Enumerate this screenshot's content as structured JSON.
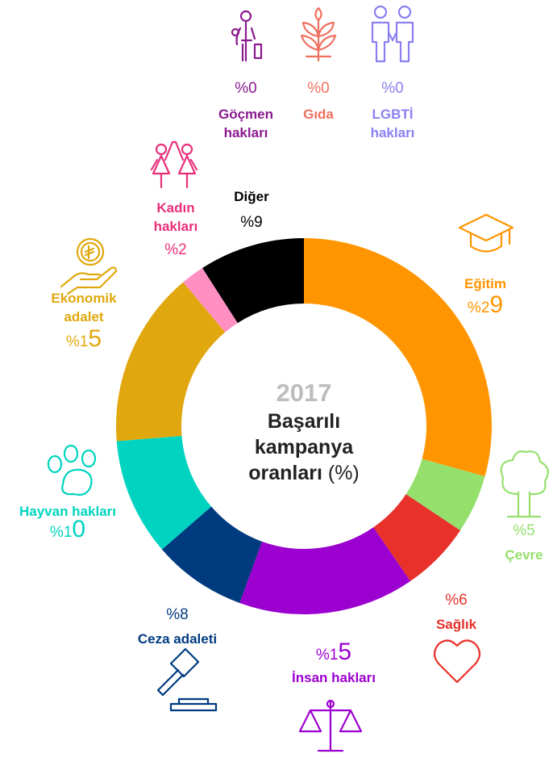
{
  "chart_data": {
    "type": "donut",
    "year": "2017",
    "title": "Başarılı kampanya oranları",
    "title_unit": "(%)",
    "categories": [
      "Eğitim",
      "Çevre",
      "Sağlık",
      "İnsan hakları",
      "Ceza adaleti",
      "Hayvan hakları",
      "Ekonomik adalet",
      "Kadın hakları",
      "Diğer",
      "Göçmen hakları",
      "Gıda",
      "LGBTİ hakları"
    ],
    "values": [
      29,
      5,
      6,
      15,
      8,
      10,
      15,
      2,
      9,
      0,
      0,
      0
    ],
    "value_labels": [
      "%29",
      "%5",
      "%6",
      "%15",
      "%8",
      "%10",
      "%15",
      "%2",
      "%9",
      "%0",
      "%0",
      "%0"
    ],
    "colors": [
      "#ff9500",
      "#95e06c",
      "#e8312a",
      "#9b00d0",
      "#003b80",
      "#00d4c0",
      "#e0a80e",
      "#ff8fc0",
      "#000000",
      "#8b1a8f",
      "#f07060",
      "#8a80f0"
    ]
  }
}
